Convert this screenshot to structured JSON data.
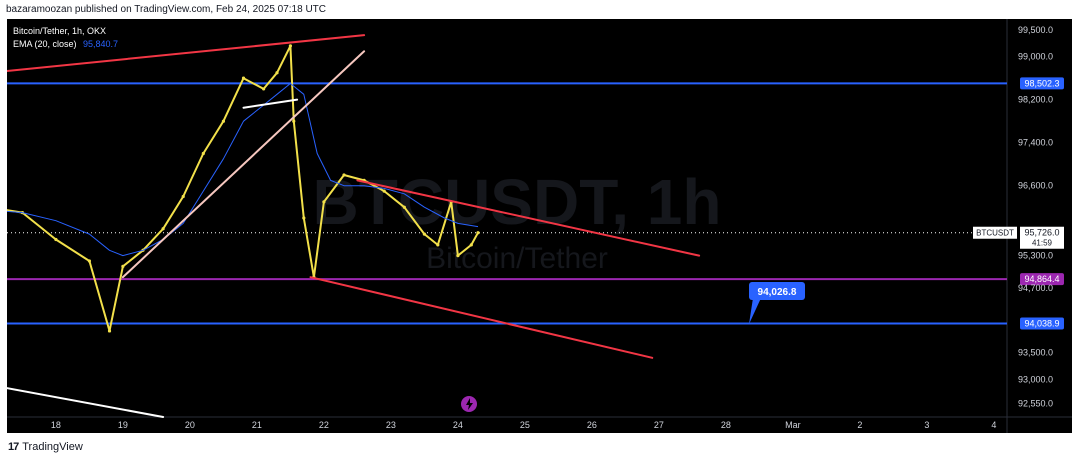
{
  "header": {
    "published_by": "bazaramoozan published on TradingView.com, Feb 24, 2025 07:18 UTC"
  },
  "legend": {
    "symbol_line": "Bitcoin/Tether, 1h, OKX",
    "ema_label": "EMA (20, close)",
    "ema_value": "95,840.7"
  },
  "watermark": {
    "ticker": "BTCUSDT, 1h",
    "name": "Bitcoin/Tether"
  },
  "footer": {
    "brand": "TradingView"
  },
  "colors": {
    "background": "#000000",
    "candle": "#f2e04a",
    "candle_alt": "#1f7a3e",
    "ema": "#2962ff",
    "blue_level": "#2962ff",
    "purple_level": "#9c27b0",
    "red_line": "#f23645",
    "white_line": "#ffffff",
    "pink_line": "#f6c7bf"
  },
  "chart_data": {
    "type": "line",
    "symbol": "BTCUSDT",
    "interval": "1h",
    "ylim": [
      92300,
      99700
    ],
    "x_ticks": [
      "18",
      "19",
      "20",
      "21",
      "22",
      "23",
      "24",
      "25",
      "26",
      "27",
      "28",
      "Mar",
      "2",
      "3",
      "4"
    ],
    "y_ticks": [
      "99,500.0",
      "99,000.0",
      "98,200.0",
      "97,400.0",
      "96,600.0",
      "95,300.0",
      "94,700.0",
      "93,500.0",
      "93,000.0",
      "92,550.0"
    ],
    "levels": [
      {
        "name": "resistance",
        "value": 98502.3,
        "label": "98,502.3",
        "color": "#2962ff"
      },
      {
        "name": "low",
        "value": 94864.4,
        "label": "94,864.4",
        "color": "#9c27b0"
      },
      {
        "name": "support",
        "value": 94038.9,
        "label": "94,038.9",
        "color": "#2962ff"
      }
    ],
    "current_price": {
      "value": 95726.0,
      "label": "95,726.0",
      "symbol": "BTCUSDT",
      "countdown": "41:59"
    },
    "callout": {
      "value": 94026.8,
      "label": "94,026.8"
    },
    "series": [
      {
        "type": "close",
        "x": [
          17.0,
          17.5,
          18.0,
          18.5,
          18.8,
          19.0,
          19.3,
          19.6,
          19.9,
          20.2,
          20.5,
          20.8,
          21.1,
          21.3,
          21.5,
          21.55,
          21.7,
          21.85,
          22.0,
          22.3,
          22.6,
          22.9,
          23.2,
          23.5,
          23.7,
          23.9,
          24.0,
          24.2,
          24.3
        ],
        "y": [
          96200,
          96100,
          95600,
          95200,
          93900,
          95100,
          95400,
          95800,
          96400,
          97200,
          97800,
          98600,
          98400,
          98700,
          99200,
          97800,
          96000,
          94900,
          96300,
          96800,
          96700,
          96500,
          96200,
          95700,
          95500,
          96300,
          95300,
          95500,
          95726
        ]
      },
      {
        "type": "ema",
        "x": [
          17.0,
          17.5,
          18.0,
          18.5,
          18.8,
          19.0,
          19.3,
          19.6,
          19.9,
          20.2,
          20.5,
          20.8,
          21.1,
          21.3,
          21.5,
          21.7,
          21.9,
          22.1,
          22.3,
          22.6,
          22.9,
          23.2,
          23.5,
          23.8,
          24.0,
          24.3
        ],
        "y": [
          96150,
          96100,
          95950,
          95700,
          95400,
          95300,
          95400,
          95600,
          95900,
          96500,
          97100,
          97800,
          98100,
          98300,
          98500,
          98300,
          97200,
          96700,
          96600,
          96600,
          96550,
          96450,
          96200,
          96000,
          95900,
          95840
        ]
      }
    ],
    "trendlines": [
      {
        "color": "#f23645",
        "p1": [
          17.0,
          98700
        ],
        "p2": [
          22.6,
          99400
        ]
      },
      {
        "color": "#f6c7bf",
        "p1": [
          19.0,
          94900
        ],
        "p2": [
          22.6,
          99100
        ]
      },
      {
        "color": "#ffffff",
        "p1": [
          20.8,
          98050
        ],
        "p2": [
          21.6,
          98200
        ]
      },
      {
        "color": "#f23645",
        "p1": [
          22.5,
          96700
        ],
        "p2": [
          27.6,
          95300
        ]
      },
      {
        "color": "#f23645",
        "p1": [
          21.8,
          94900
        ],
        "p2": [
          26.9,
          93400
        ]
      },
      {
        "color": "#ffffff",
        "p1": [
          17.0,
          92900
        ],
        "p2": [
          19.6,
          92300
        ]
      }
    ]
  }
}
